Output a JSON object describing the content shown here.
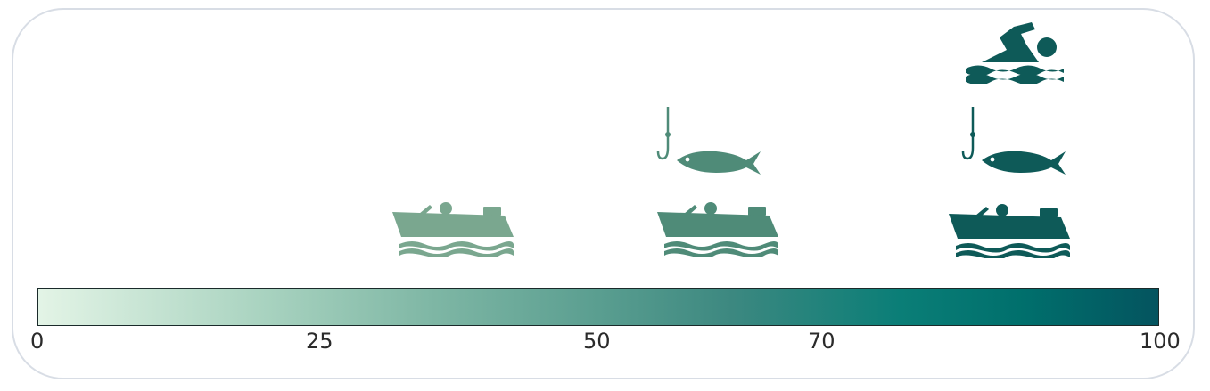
{
  "scale": {
    "ticks": [
      "0",
      "25",
      "50",
      "70",
      "100"
    ],
    "colors": [
      "#e3f4e6",
      "#a9d3c0",
      "#5a9e90",
      "#0a7e77",
      "#04545f"
    ]
  },
  "icons": {
    "boat_light": {
      "name": "boat-icon",
      "color": "#7aa78f"
    },
    "boat_mid": {
      "name": "boat-icon",
      "color": "#4f8b78"
    },
    "boat_dark": {
      "name": "boat-icon",
      "color": "#0e5a58"
    },
    "fish_mid": {
      "name": "fishing-icon",
      "color": "#4f8b78"
    },
    "fish_dark": {
      "name": "fishing-icon",
      "color": "#0e5a58"
    },
    "swim_dark": {
      "name": "swimming-icon",
      "color": "#0e5a58"
    }
  }
}
